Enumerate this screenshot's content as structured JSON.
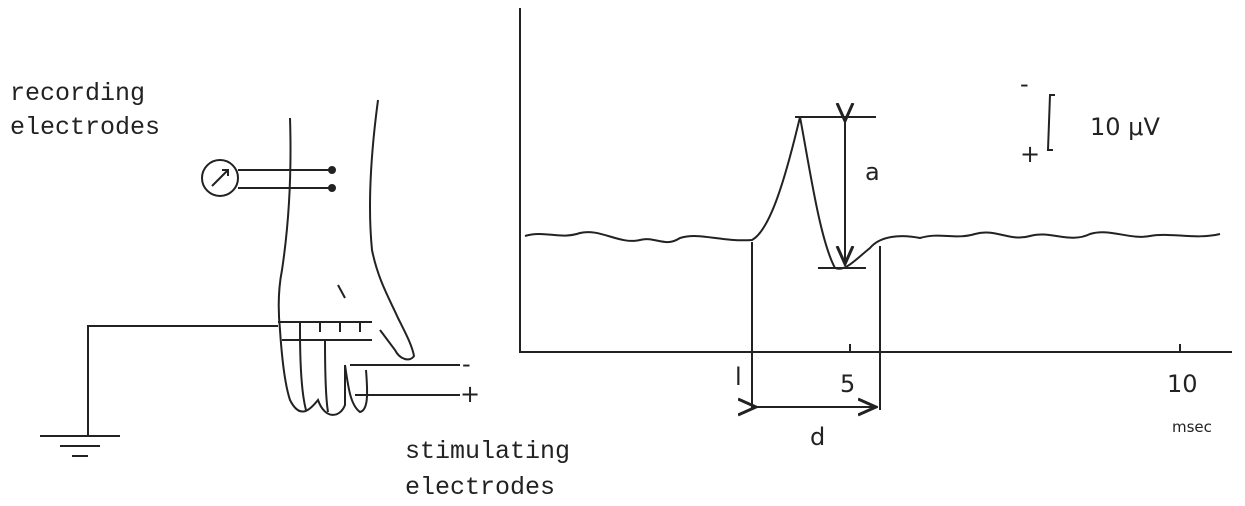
{
  "left_panel": {
    "recording_label": [
      "recording",
      "electrodes"
    ],
    "stimulating_label": [
      "stimulating",
      "electrodes"
    ],
    "stim_minus": "-",
    "stim_plus": "+"
  },
  "right_panel": {
    "scale": {
      "minus": "-",
      "plus": "+",
      "label": "10 μV"
    },
    "amplitude_label": "a",
    "latency_label": "l",
    "duration_label": "d",
    "x_axis": {
      "ticks": [
        5,
        10
      ],
      "unit": "msec"
    }
  }
}
